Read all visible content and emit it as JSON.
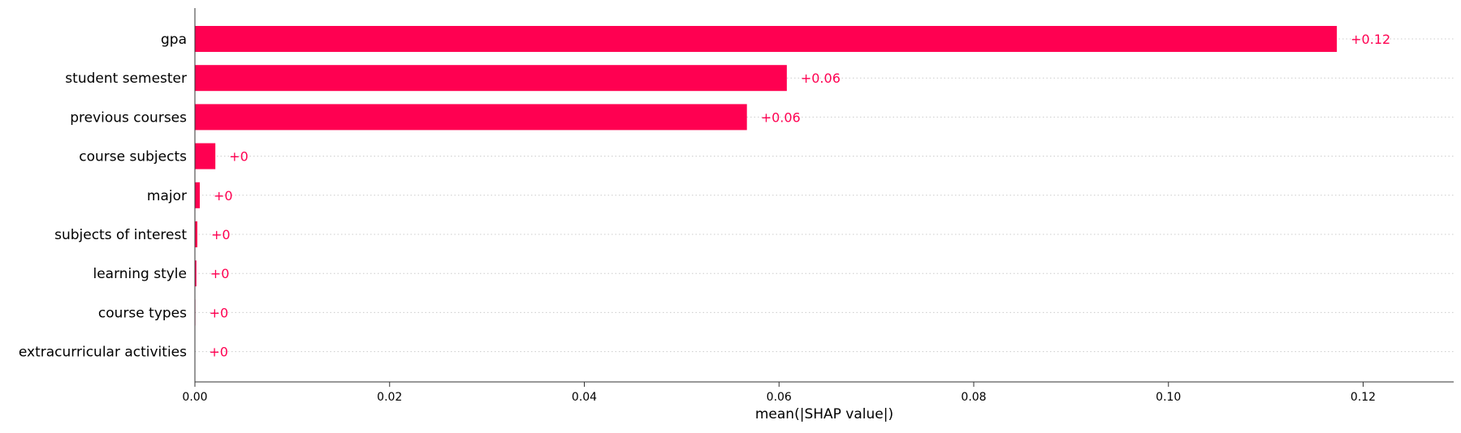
{
  "chart_data": {
    "type": "bar",
    "orientation": "horizontal",
    "categories": [
      "gpa",
      "student semester",
      "previous courses",
      "course subjects",
      "major",
      "subjects of interest",
      "learning style",
      "course types",
      "extracurricular activities"
    ],
    "values": [
      0.1173,
      0.0608,
      0.0567,
      0.0021,
      0.0005,
      0.00025,
      0.00015,
      5e-05,
      3e-05
    ],
    "value_labels": [
      "+0.12",
      "+0.06",
      "+0.06",
      "+0",
      "+0",
      "+0",
      "+0",
      "+0",
      "+0"
    ],
    "title": "",
    "xlabel": "mean(|SHAP value|)",
    "ylabel": "",
    "xlim": [
      0,
      0.1293
    ],
    "xticks": [
      0.0,
      0.02,
      0.04,
      0.06,
      0.08,
      0.1,
      0.12
    ],
    "xtick_labels": [
      "0.00",
      "0.02",
      "0.04",
      "0.06",
      "0.08",
      "0.10",
      "0.12"
    ],
    "grid": "horizontal dotted row guides",
    "legend": "none",
    "colors": {
      "bar": "#ff0051",
      "value_label": "#ff0051",
      "axis": "#333333",
      "text": "#000000",
      "guide": "#cccccc"
    }
  }
}
